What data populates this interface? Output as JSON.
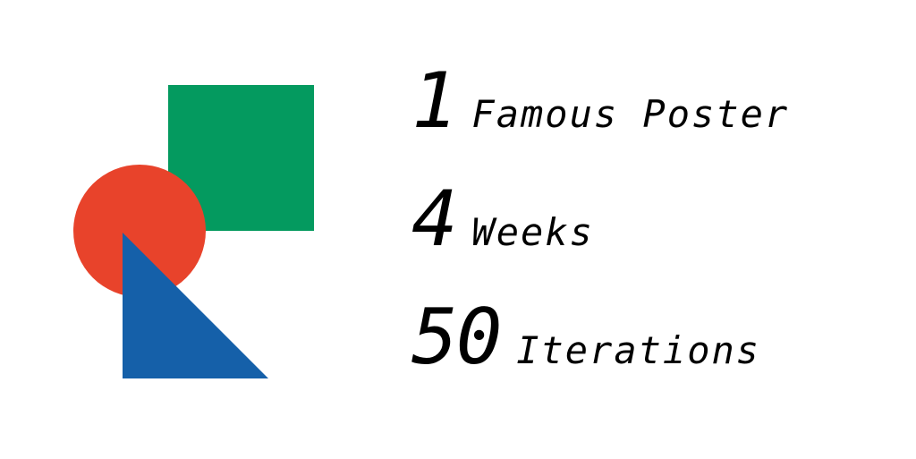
{
  "colors": {
    "background": "#ffffff",
    "square": "#049a5f",
    "circle": "#e8432b",
    "triangle": "#1560a9",
    "text": "#000000"
  },
  "shapes": [
    {
      "name": "green-square",
      "kind": "square"
    },
    {
      "name": "red-circle",
      "kind": "circle"
    },
    {
      "name": "blue-triangle",
      "kind": "triangle"
    }
  ],
  "stats": [
    {
      "number": "1",
      "label": "Famous Poster"
    },
    {
      "number": "4",
      "label": "Weeks"
    },
    {
      "number": "50",
      "label": "Iterations"
    }
  ]
}
